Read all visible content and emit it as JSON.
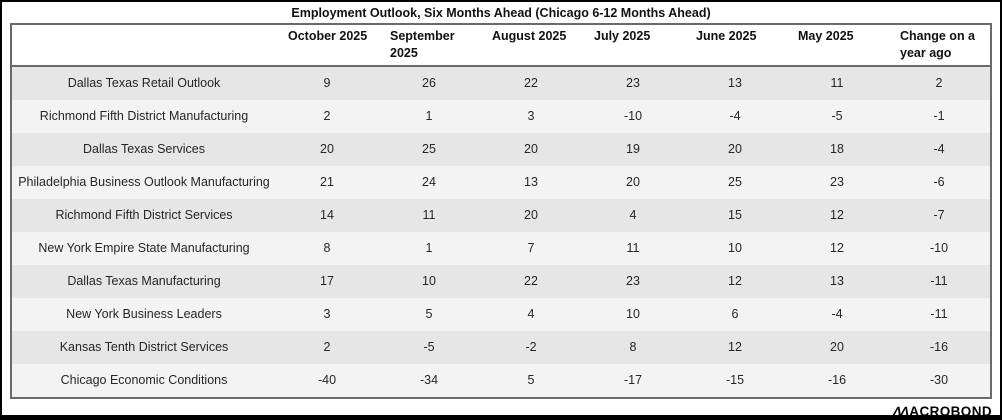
{
  "chart_data": {
    "type": "table",
    "title": "Employment Outlook, Six Months Ahead (Chicago 6-12 Months Ahead)",
    "columns": [
      "October 2025",
      "September 2025",
      "August 2025",
      "July 2025",
      "June 2025",
      "May 2025",
      "Change on a year ago"
    ],
    "rows": [
      {
        "label": "Dallas Texas Retail Outlook",
        "values": [
          9,
          26,
          22,
          23,
          13,
          11,
          2
        ]
      },
      {
        "label": "Richmond Fifth District Manufacturing",
        "values": [
          2,
          1,
          3,
          -10,
          -4,
          -5,
          -1
        ]
      },
      {
        "label": "Dallas Texas Services",
        "values": [
          20,
          25,
          20,
          19,
          20,
          18,
          -4
        ]
      },
      {
        "label": "Philadelphia Business Outlook Manufacturing",
        "values": [
          21,
          24,
          13,
          20,
          25,
          23,
          -6
        ]
      },
      {
        "label": "Richmond Fifth District Services",
        "values": [
          14,
          11,
          20,
          4,
          15,
          12,
          -7
        ]
      },
      {
        "label": "New York Empire State Manufacturing",
        "values": [
          8,
          1,
          7,
          11,
          10,
          12,
          -10
        ]
      },
      {
        "label": "Dallas Texas Manufacturing",
        "values": [
          17,
          10,
          22,
          23,
          12,
          13,
          -11
        ]
      },
      {
        "label": "New York Business Leaders",
        "values": [
          3,
          5,
          4,
          10,
          6,
          -4,
          -11
        ]
      },
      {
        "label": "Kansas Tenth District Services",
        "values": [
          2,
          -5,
          -2,
          8,
          12,
          20,
          -16
        ]
      },
      {
        "label": "Chicago Economic Conditions",
        "values": [
          -40,
          -34,
          5,
          -17,
          -15,
          -16,
          -30
        ]
      }
    ],
    "layout": {
      "row_striping": true,
      "header_position": "top",
      "label_column_position": "left"
    }
  },
  "footer": {
    "logo_mark": "ΛΛ",
    "logo_text": "ACROBOND",
    "logo_full": "MACROBOND"
  },
  "colors": {
    "row_stripe_dark": "#e6e6e6",
    "row_stripe_light": "#f3f3f3",
    "table_border": "#6a6a6a",
    "frame_border": "#000000",
    "text": "#262626"
  }
}
